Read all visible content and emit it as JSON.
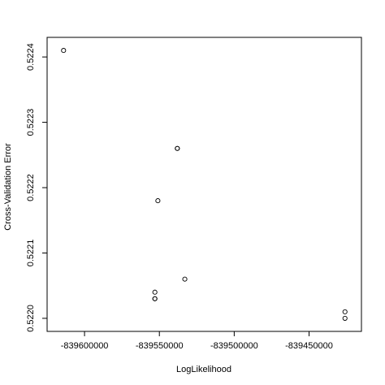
{
  "chart_data": {
    "type": "scatter",
    "xlabel": "LogLikelihood",
    "ylabel": "Cross-Validation Error",
    "xlim": [
      -839625000,
      -839415000
    ],
    "ylim": [
      0.52198,
      0.52243
    ],
    "x_ticks": [
      -839600000,
      -839550000,
      -839500000,
      -839450000
    ],
    "x_tick_labels": [
      "-839600000",
      "-839550000",
      "-839500000",
      "-839450000"
    ],
    "y_ticks": [
      0.522,
      0.5221,
      0.5222,
      0.5223,
      0.5224
    ],
    "y_tick_labels": [
      "0.5220",
      "0.5221",
      "0.5222",
      "0.5223",
      "0.5224"
    ],
    "points": [
      {
        "x": -839614000,
        "y": 0.52241
      },
      {
        "x": -839538000,
        "y": 0.52226
      },
      {
        "x": -839538000,
        "y": 0.52226
      },
      {
        "x": -839551000,
        "y": 0.52218
      },
      {
        "x": -839533000,
        "y": 0.52206
      },
      {
        "x": -839553000,
        "y": 0.52204
      },
      {
        "x": -839553000,
        "y": 0.52203
      },
      {
        "x": -839553000,
        "y": 0.52203
      },
      {
        "x": -839426000,
        "y": 0.52201
      },
      {
        "x": -839426000,
        "y": 0.522
      }
    ],
    "grid": false,
    "marker": "open-circle",
    "point_color": "#000000"
  }
}
